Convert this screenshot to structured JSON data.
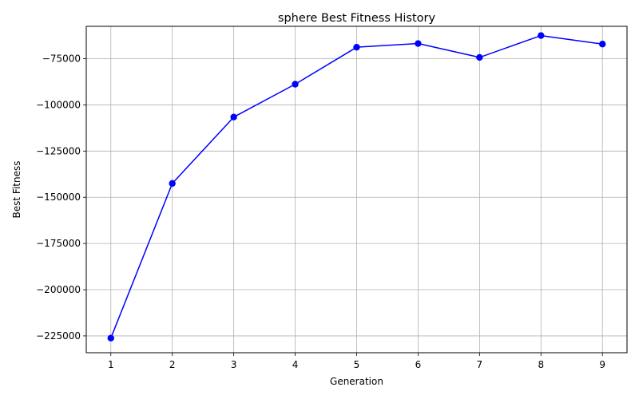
{
  "chart_data": {
    "type": "line",
    "title": "sphere Best Fitness History",
    "xlabel": "Generation",
    "ylabel": "Best Fitness",
    "x": [
      1,
      2,
      3,
      4,
      5,
      6,
      7,
      8,
      9
    ],
    "series": [
      {
        "name": "Best Fitness",
        "values": [
          -226200,
          -142500,
          -106600,
          -88800,
          -68800,
          -66800,
          -74300,
          -62500,
          -67100
        ]
      }
    ],
    "xlim": [
      0.6,
      9.4
    ],
    "ylim": [
      -234100,
      -57500
    ],
    "xticks": [
      1,
      2,
      3,
      4,
      5,
      6,
      7,
      8,
      9
    ],
    "yticks": [
      -225000,
      -200000,
      -175000,
      -150000,
      -125000,
      -100000,
      -75000
    ],
    "ytick_labels": [
      "−225000",
      "−200000",
      "−175000",
      "−150000",
      "−125000",
      "−100000",
      "−75000"
    ],
    "grid": true,
    "line_color": "#0000ff",
    "marker": "circle"
  }
}
